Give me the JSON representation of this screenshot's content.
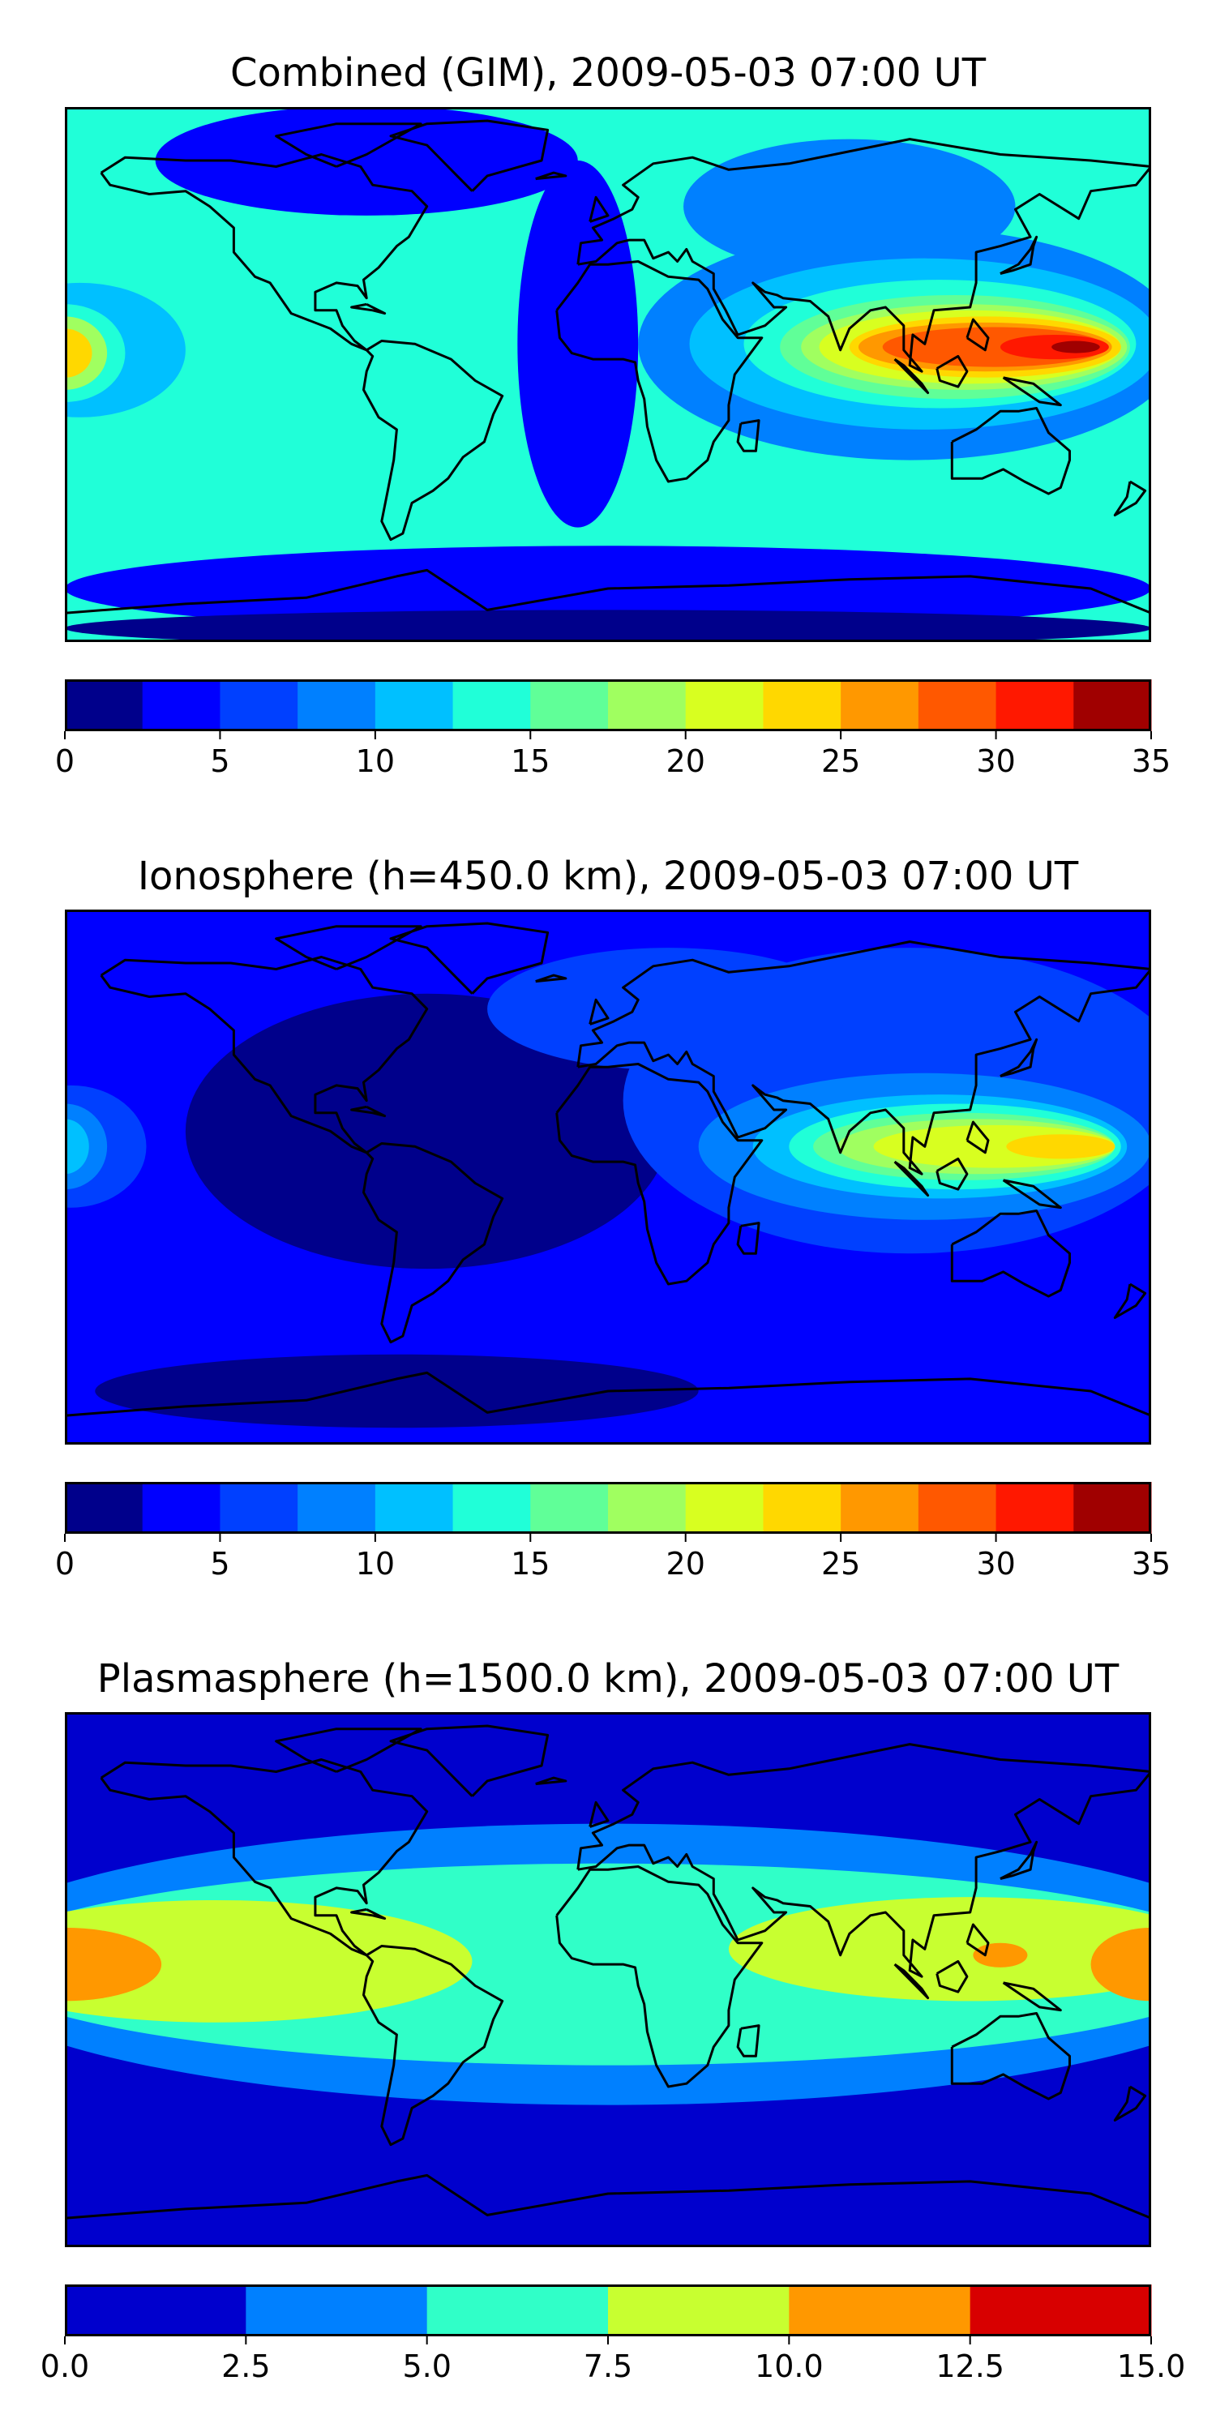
{
  "chart_data": [
    {
      "type": "heatmap",
      "title": "Combined (GIM), 2009-05-03 07:00 UT",
      "xlim": [
        -180,
        180
      ],
      "ylim": [
        -87.5,
        87.5
      ],
      "colorbar": {
        "levels": [
          0,
          2.5,
          5,
          7.5,
          10,
          12.5,
          15,
          17.5,
          20,
          22.5,
          25,
          27.5,
          30,
          32.5,
          35
        ],
        "ticks": [
          0,
          5,
          10,
          15,
          20,
          25,
          30,
          35
        ],
        "tick_labels": [
          "0",
          "5",
          "10",
          "15",
          "20",
          "25",
          "30",
          "35"
        ],
        "colors": [
          "#00008b",
          "#0000ff",
          "#0040ff",
          "#0080ff",
          "#00c0ff",
          "#20ffd8",
          "#60ff98",
          "#a0ff60",
          "#d8ff20",
          "#ffd800",
          "#ff9800",
          "#ff5800",
          "#ff1800",
          "#a00000"
        ]
      },
      "background_level": 5,
      "features": [
        {
          "lon": -80,
          "lat": 70,
          "rx": 70,
          "ry": 18,
          "level": 1,
          "rot": 0
        },
        {
          "lon": -10,
          "lat": 10,
          "rx": 20,
          "ry": 60,
          "level": 1,
          "rot": 0
        },
        {
          "lon": 0,
          "lat": -70,
          "rx": 180,
          "ry": 14,
          "level": 1,
          "rot": 0
        },
        {
          "lon": 0,
          "lat": -83,
          "rx": 180,
          "ry": 6,
          "level": 0,
          "rot": 0
        },
        {
          "lon": 80,
          "lat": 55,
          "rx": 55,
          "ry": 22,
          "level": 3,
          "rot": 0
        },
        {
          "lon": 100,
          "lat": 10,
          "rx": 90,
          "ry": 38,
          "level": 3,
          "rot": 0
        },
        {
          "lon": 105,
          "lat": 10,
          "rx": 78,
          "ry": 28,
          "level": 4,
          "rot": 0
        },
        {
          "lon": 110,
          "lat": 10,
          "rx": 65,
          "ry": 21,
          "level": 5,
          "rot": 0
        },
        {
          "lon": 115,
          "lat": 9,
          "rx": 58,
          "ry": 17,
          "level": 6,
          "rot": 0
        },
        {
          "lon": 118,
          "lat": 9,
          "rx": 54,
          "ry": 14,
          "level": 7,
          "rot": 0
        },
        {
          "lon": 120,
          "lat": 9,
          "rx": 50,
          "ry": 12,
          "level": 8,
          "rot": 0
        },
        {
          "lon": 125,
          "lat": 9,
          "rx": 45,
          "ry": 10,
          "level": 9,
          "rot": 0
        },
        {
          "lon": 125,
          "lat": 9,
          "rx": 42,
          "ry": 8,
          "level": 10,
          "rot": 0
        },
        {
          "lon": 128,
          "lat": 9,
          "rx": 37,
          "ry": 6.5,
          "level": 11,
          "rot": 0
        },
        {
          "lon": 148,
          "lat": 9,
          "rx": 18,
          "ry": 4,
          "level": 12,
          "rot": 0
        },
        {
          "lon": 155,
          "lat": 9,
          "rx": 8,
          "ry": 2,
          "level": 13,
          "rot": 0
        },
        {
          "lon": -175,
          "lat": 8,
          "rx": 35,
          "ry": 22,
          "level": 4,
          "rot": 0
        },
        {
          "lon": -180,
          "lat": 7,
          "rx": 20,
          "ry": 16,
          "level": 5,
          "rot": 0
        },
        {
          "lon": -180,
          "lat": 7,
          "rx": 14,
          "ry": 12,
          "level": 7,
          "rot": 0
        },
        {
          "lon": -180,
          "lat": 7,
          "rx": 9,
          "ry": 8,
          "level": 9,
          "rot": 0
        }
      ]
    },
    {
      "type": "heatmap",
      "title": "Ionosphere  (h=450.0 km), 2009-05-03 07:00 UT",
      "xlim": [
        -180,
        180
      ],
      "ylim": [
        -87.5,
        87.5
      ],
      "colorbar": {
        "levels": [
          0,
          2.5,
          5,
          7.5,
          10,
          12.5,
          15,
          17.5,
          20,
          22.5,
          25,
          27.5,
          30,
          32.5,
          35
        ],
        "ticks": [
          0,
          5,
          10,
          15,
          20,
          25,
          30,
          35
        ],
        "tick_labels": [
          "0",
          "5",
          "10",
          "15",
          "20",
          "25",
          "30",
          "35"
        ],
        "colors": [
          "#00008b",
          "#0000ff",
          "#0040ff",
          "#0080ff",
          "#00c0ff",
          "#20ffd8",
          "#60ff98",
          "#a0ff60",
          "#d8ff20",
          "#ffd800",
          "#ff9800",
          "#ff5800",
          "#ff1800",
          "#a00000"
        ]
      },
      "background_level": 1,
      "features": [
        {
          "lon": -60,
          "lat": 15,
          "rx": 80,
          "ry": 45,
          "level": 0,
          "rot": 0
        },
        {
          "lon": -70,
          "lat": -70,
          "rx": 100,
          "ry": 12,
          "level": 0,
          "rot": 0
        },
        {
          "lon": 100,
          "lat": 25,
          "rx": 95,
          "ry": 50,
          "level": 2,
          "rot": 0
        },
        {
          "lon": 105,
          "lat": 10,
          "rx": 75,
          "ry": 24,
          "level": 3,
          "rot": 0
        },
        {
          "lon": 110,
          "lat": 10,
          "rx": 62,
          "ry": 17,
          "level": 4,
          "rot": 0
        },
        {
          "lon": 115,
          "lat": 10,
          "rx": 55,
          "ry": 14,
          "level": 5,
          "rot": 0
        },
        {
          "lon": 118,
          "lat": 10,
          "rx": 50,
          "ry": 11,
          "level": 6,
          "rot": 0
        },
        {
          "lon": 122,
          "lat": 10,
          "rx": 46,
          "ry": 9,
          "level": 7,
          "rot": 0
        },
        {
          "lon": 128,
          "lat": 10,
          "rx": 40,
          "ry": 7,
          "level": 8,
          "rot": 0
        },
        {
          "lon": 150,
          "lat": 10,
          "rx": 18,
          "ry": 4,
          "level": 9,
          "rot": 0
        },
        {
          "lon": -178,
          "lat": 10,
          "rx": 25,
          "ry": 20,
          "level": 2,
          "rot": 0
        },
        {
          "lon": -180,
          "lat": 10,
          "rx": 14,
          "ry": 14,
          "level": 3,
          "rot": 0
        },
        {
          "lon": -180,
          "lat": 10,
          "rx": 8,
          "ry": 9,
          "level": 4,
          "rot": 0
        },
        {
          "lon": 20,
          "lat": 55,
          "rx": 60,
          "ry": 20,
          "level": 2,
          "rot": 0
        }
      ]
    },
    {
      "type": "heatmap",
      "title": "Plasmasphere (h=1500.0 km), 2009-05-03 07:00 UT",
      "xlim": [
        -180,
        180
      ],
      "ylim": [
        -87.5,
        87.5
      ],
      "colorbar": {
        "levels": [
          0,
          2.5,
          5,
          7.5,
          10,
          12.5,
          15
        ],
        "ticks": [
          0,
          2.5,
          5,
          7.5,
          10,
          12.5,
          15
        ],
        "tick_labels": [
          "0.0",
          "2.5",
          "5.0",
          "7.5",
          "10.0",
          "12.5",
          "15.0"
        ],
        "colors": [
          "#0000cd",
          "#0080ff",
          "#30ffc8",
          "#c8ff30",
          "#ff9800",
          "#d80000"
        ]
      },
      "background_level": 0,
      "features": [
        {
          "lon": 0,
          "lat": 5,
          "rx": 220,
          "ry": 46,
          "level": 1,
          "rot": 0
        },
        {
          "lon": 0,
          "lat": 5,
          "rx": 210,
          "ry": 33,
          "level": 2,
          "rot": 0
        },
        {
          "lon": -130,
          "lat": 6,
          "rx": 85,
          "ry": 20,
          "level": 3,
          "rot": 0
        },
        {
          "lon": 120,
          "lat": 10,
          "rx": 80,
          "ry": 17,
          "level": 3,
          "rot": 0
        },
        {
          "lon": -180,
          "lat": 5,
          "rx": 32,
          "ry": 12,
          "level": 4,
          "rot": 0
        },
        {
          "lon": 180,
          "lat": 5,
          "rx": 20,
          "ry": 12,
          "level": 4,
          "rot": 0
        },
        {
          "lon": 130,
          "lat": 8,
          "rx": 9,
          "ry": 4,
          "level": 4,
          "rot": 0
        }
      ]
    }
  ]
}
